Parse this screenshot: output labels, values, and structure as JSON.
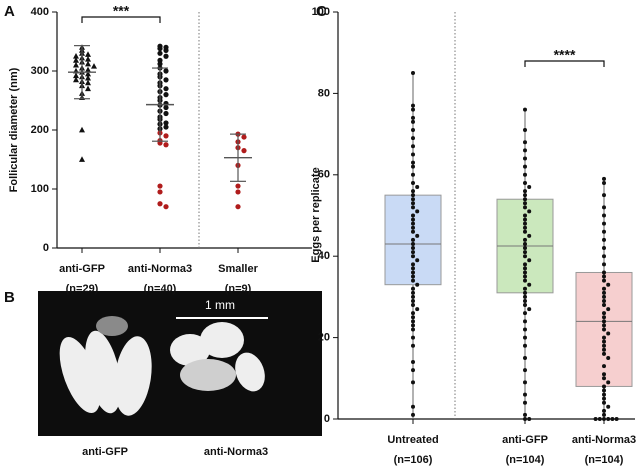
{
  "chart_data": [
    {
      "type": "strip",
      "panel_label": "A",
      "y_label": "Follicular diameter (nm)",
      "ylim": [
        0,
        400
      ],
      "yticks": [
        0,
        100,
        200,
        300,
        400
      ],
      "significance": "***",
      "categories": [
        "anti-GFP",
        "anti-Norma3",
        "Smaller"
      ],
      "category_notes": [
        "(n=29)",
        "(n=40)",
        "(n=9)"
      ],
      "groups": [
        {
          "name": "anti-GFP",
          "marker": "triangle",
          "color": "#111111",
          "mean": 298,
          "sd": 45,
          "values": [
            340,
            335,
            330,
            328,
            325,
            322,
            320,
            318,
            315,
            312,
            310,
            308,
            305,
            302,
            300,
            298,
            295,
            292,
            290,
            288,
            285,
            282,
            280,
            275,
            270,
            262,
            255,
            200,
            150
          ]
        },
        {
          "name": "anti-Norma3",
          "marker": "circle",
          "color": "#111111",
          "highlight_color": "#b01c1c",
          "mean": 243,
          "sd": 62,
          "values": [
            342,
            340,
            338,
            335,
            330,
            325,
            318,
            312,
            305,
            300,
            295,
            290,
            285,
            280,
            275,
            270,
            265,
            260,
            255,
            250,
            245,
            242,
            238,
            232,
            228,
            222,
            218,
            212,
            210,
            205,
            202
          ],
          "highlighted_values": [
            195,
            190,
            182,
            178,
            175,
            105,
            95,
            75,
            70
          ]
        },
        {
          "name": "Smaller",
          "marker": "circle",
          "color": "#b01c1c",
          "mean": 153,
          "sd": 40,
          "values": [
            193,
            188,
            180,
            170,
            165,
            140,
            105,
            95,
            70
          ]
        }
      ]
    },
    {
      "type": "box",
      "panel_label": "C",
      "y_label": "Eggs per replicate",
      "ylim": [
        0,
        100
      ],
      "yticks": [
        0,
        20,
        40,
        60,
        80,
        100
      ],
      "significance": "****",
      "categories": [
        "Untreated",
        "anti-GFP",
        "anti-Norma3"
      ],
      "category_notes": [
        "(n=106)",
        "(n=104)",
        "(n=104)"
      ],
      "groups": [
        {
          "name": "Untreated",
          "color": "#c9daf5",
          "min": 0,
          "q1": 33,
          "median": 43,
          "q3": 55,
          "max": 85,
          "values": [
            85,
            77,
            76,
            74,
            73,
            71,
            69,
            67,
            65,
            63,
            62,
            60,
            58,
            57,
            56,
            55,
            54,
            53,
            52,
            51,
            50,
            49,
            48,
            47,
            46,
            45,
            44,
            43,
            42,
            41,
            40,
            39,
            38,
            37,
            36,
            35,
            34,
            33,
            32,
            31,
            30,
            29,
            28,
            27,
            26,
            25,
            24,
            23,
            22,
            20,
            18,
            14,
            12,
            9,
            3,
            1
          ]
        },
        {
          "name": "anti-GFP",
          "color": "#cbe8bd",
          "min": 0,
          "q1": 31,
          "median": 42.5,
          "q3": 54,
          "max": 76,
          "values": [
            76,
            71,
            68,
            66,
            64,
            62,
            60,
            58,
            57,
            56,
            55,
            54,
            53,
            52,
            51,
            50,
            49,
            48,
            47,
            46,
            45,
            44,
            43,
            42,
            41,
            40,
            39,
            38,
            37,
            36,
            35,
            34,
            33,
            32,
            31,
            30,
            29,
            28,
            27,
            26,
            24,
            22,
            20,
            18,
            15,
            12,
            9,
            6,
            4,
            1,
            0,
            0
          ]
        },
        {
          "name": "anti-Norma3",
          "color": "#f6cfcf",
          "min": 0,
          "q1": 8,
          "median": 24,
          "q3": 36,
          "max": 59,
          "values": [
            59,
            58,
            55,
            52,
            50,
            48,
            46,
            44,
            42,
            40,
            38,
            36,
            35,
            34,
            33,
            32,
            31,
            30,
            29,
            28,
            27,
            26,
            25,
            24,
            23,
            22,
            21,
            20,
            19,
            18,
            17,
            16,
            15,
            13,
            11,
            10,
            9,
            8,
            7,
            6,
            5,
            4,
            3,
            2,
            1,
            0,
            0,
            0,
            0,
            0,
            0
          ]
        }
      ]
    }
  ],
  "photo": {
    "panel_label": "B",
    "scale_bar": "1 mm",
    "labels": [
      "anti-GFP",
      "anti-Norma3"
    ]
  }
}
